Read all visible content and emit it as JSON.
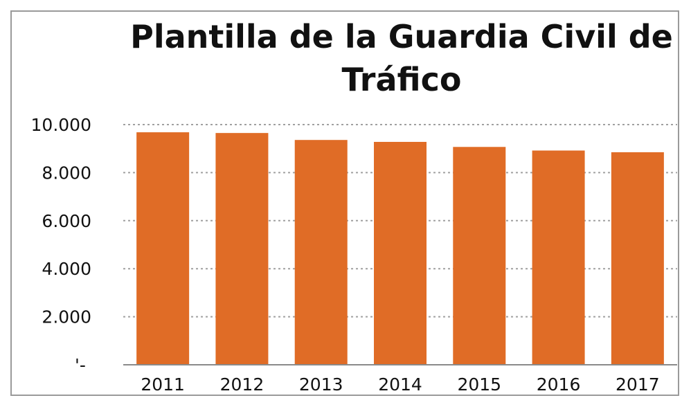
{
  "chart_data": {
    "type": "bar",
    "title_lines": [
      "Plantilla de la Guardia Civil de",
      "Tráfico"
    ],
    "categories": [
      "2011",
      "2012",
      "2013",
      "2014",
      "2015",
      "2016",
      "2017"
    ],
    "values": [
      9680,
      9650,
      9360,
      9280,
      9070,
      8920,
      8850
    ],
    "yticks": [
      "'-",
      "2.000",
      "4.000",
      "6.000",
      "8.000",
      "10.000"
    ],
    "ylim": [
      0,
      10000
    ],
    "ytick_step": 2000,
    "grid": true,
    "bar_color": "#e06c26",
    "gridline_color": "#a0a0a0",
    "legend": "none"
  }
}
